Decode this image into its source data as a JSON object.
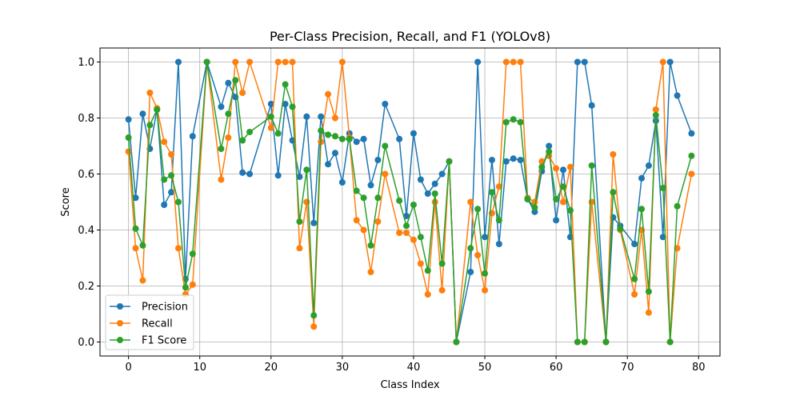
{
  "chart_data": {
    "type": "line",
    "title": "Per-Class Precision, Recall, and F1 (YOLOv8)",
    "xlabel": "Class Index",
    "ylabel": "Score",
    "xlim": [
      -4,
      83
    ],
    "ylim": [
      -0.05,
      1.05
    ],
    "xticks": [
      0,
      10,
      20,
      30,
      40,
      50,
      60,
      70,
      80
    ],
    "yticks": [
      0.0,
      0.2,
      0.4,
      0.6,
      0.8,
      1.0
    ],
    "grid": true,
    "legend_position": "lower-left",
    "x": [
      0,
      1,
      2,
      3,
      4,
      5,
      6,
      7,
      8,
      9,
      11,
      13,
      14,
      15,
      16,
      17,
      20,
      21,
      22,
      23,
      24,
      25,
      26,
      27,
      28,
      29,
      30,
      31,
      32,
      33,
      34,
      35,
      36,
      38,
      39,
      40,
      41,
      42,
      43,
      44,
      45,
      46,
      48,
      49,
      50,
      51,
      52,
      53,
      54,
      55,
      56,
      57,
      58,
      59,
      60,
      61,
      62,
      63,
      64,
      65,
      67,
      68,
      69,
      71,
      72,
      73,
      74,
      75,
      76,
      77,
      79
    ],
    "series": [
      {
        "name": "Precision",
        "color": "#1f77b4",
        "values": [
          0.795,
          0.515,
          0.815,
          0.69,
          0.83,
          0.49,
          0.535,
          1.0,
          0.225,
          0.735,
          1.0,
          0.84,
          0.925,
          0.875,
          0.605,
          0.6,
          0.85,
          0.595,
          0.85,
          0.72,
          0.59,
          0.805,
          0.425,
          0.805,
          0.635,
          0.675,
          0.57,
          0.745,
          0.715,
          0.725,
          0.56,
          0.65,
          0.85,
          0.725,
          0.45,
          0.745,
          0.58,
          0.53,
          0.565,
          0.6,
          0.645,
          0.0,
          0.25,
          1.0,
          0.375,
          0.65,
          0.35,
          0.645,
          0.655,
          0.65,
          0.51,
          0.465,
          0.61,
          0.7,
          0.435,
          0.615,
          0.375,
          1.0,
          1.0,
          0.845,
          0.0,
          0.445,
          0.415,
          0.35,
          0.585,
          0.63,
          0.79,
          0.375,
          1.0,
          0.88,
          0.745
        ]
      },
      {
        "name": "Recall",
        "color": "#ff7f0e",
        "values": [
          0.68,
          0.335,
          0.22,
          0.89,
          0.835,
          0.715,
          0.67,
          0.335,
          0.17,
          0.205,
          1.0,
          0.58,
          0.73,
          1.0,
          0.89,
          1.0,
          0.765,
          1.0,
          1.0,
          1.0,
          0.335,
          0.5,
          0.055,
          0.715,
          0.885,
          0.8,
          1.0,
          0.73,
          0.435,
          0.4,
          0.25,
          0.43,
          0.6,
          0.39,
          0.39,
          0.365,
          0.28,
          0.17,
          0.5,
          0.185,
          0.645,
          0.0,
          0.5,
          0.31,
          0.185,
          0.46,
          0.555,
          1.0,
          1.0,
          1.0,
          0.515,
          0.5,
          0.645,
          0.665,
          0.62,
          0.5,
          0.625,
          0.0,
          0.0,
          0.5,
          0.0,
          0.67,
          0.4,
          0.17,
          0.4,
          0.105,
          0.83,
          1.0,
          0.0,
          0.335,
          0.6
        ]
      },
      {
        "name": "F1 Score",
        "color": "#2ca02c",
        "values": [
          0.73,
          0.405,
          0.345,
          0.775,
          0.83,
          0.58,
          0.595,
          0.5,
          0.195,
          0.315,
          1.0,
          0.69,
          0.815,
          0.935,
          0.72,
          0.75,
          0.805,
          0.745,
          0.92,
          0.84,
          0.43,
          0.615,
          0.095,
          0.755,
          0.74,
          0.735,
          0.725,
          0.725,
          0.54,
          0.515,
          0.345,
          0.515,
          0.7,
          0.505,
          0.415,
          0.49,
          0.375,
          0.255,
          0.53,
          0.28,
          0.645,
          0.0,
          0.335,
          0.475,
          0.245,
          0.535,
          0.435,
          0.785,
          0.795,
          0.785,
          0.51,
          0.48,
          0.625,
          0.68,
          0.51,
          0.555,
          0.47,
          0.0,
          0.0,
          0.63,
          0.0,
          0.535,
          0.405,
          0.225,
          0.475,
          0.18,
          0.81,
          0.55,
          0.0,
          0.485,
          0.665
        ]
      }
    ]
  }
}
